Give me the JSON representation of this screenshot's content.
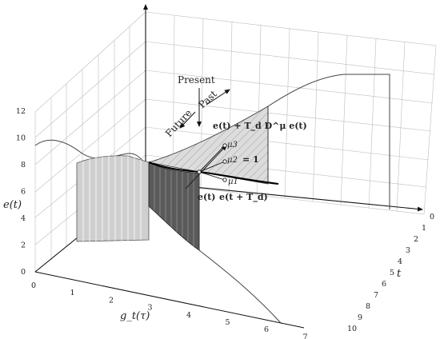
{
  "axes": {
    "e_label": "e(t)",
    "g_label": "g_t(τ)",
    "t_label": "t",
    "e_ticks": [
      "0",
      "2",
      "4",
      "6",
      "8",
      "10",
      "12"
    ],
    "g_ticks": [
      "0",
      "1",
      "2",
      "3",
      "4",
      "5",
      "6",
      "7"
    ],
    "t_ticks": [
      "0",
      "1",
      "2",
      "3",
      "4",
      "5",
      "6",
      "7",
      "8",
      "9",
      "10"
    ]
  },
  "annotations": {
    "present": "Present",
    "future": "Future",
    "past": "Past",
    "derivative": "e(t) + T_d D^μ e(t)",
    "mu2_eq": "= 1",
    "e_t": "e(t)",
    "e_t_td": "e(t + T_d)"
  },
  "mu_labels": {
    "mu1": "μ1",
    "mu2": "μ2",
    "mu3": "μ3"
  }
}
